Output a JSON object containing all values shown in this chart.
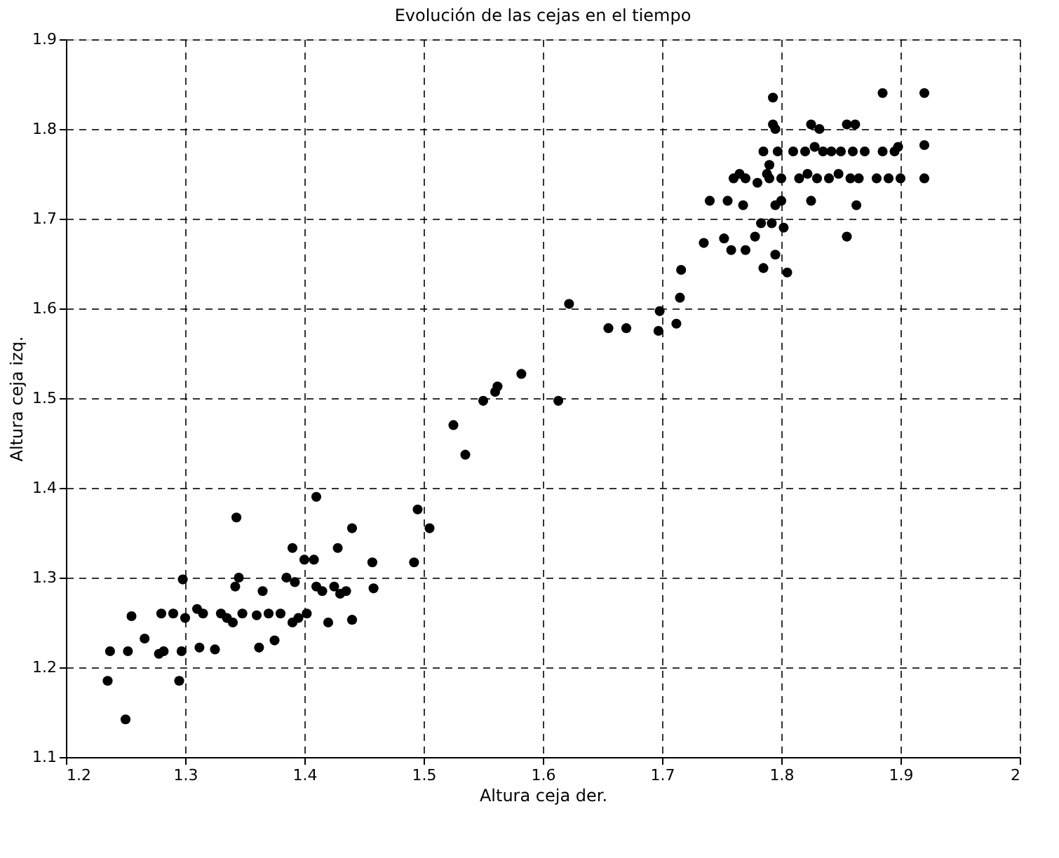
{
  "chart_data": {
    "type": "scatter",
    "title": "Evolución de las cejas en el tiempo",
    "xlabel": "Altura ceja der.",
    "ylabel": "Altura ceja izq.",
    "xlim": [
      1.2,
      2
    ],
    "xticks": [
      1.2,
      1.3,
      1.4,
      1.5,
      1.6,
      1.7,
      1.8,
      1.9,
      2
    ],
    "ylim": [
      1.1,
      1.9
    ],
    "yticks": [
      1.1,
      1.2,
      1.3,
      1.4,
      1.5,
      1.6,
      1.7,
      1.8,
      1.9
    ],
    "grid": true,
    "marker": "circle",
    "series": [
      {
        "color": "#000000",
        "x": [
          1.235,
          1.237,
          1.25,
          1.252,
          1.255,
          1.266,
          1.278,
          1.28,
          1.282,
          1.29,
          1.295,
          1.297,
          1.298,
          1.3,
          1.31,
          1.312,
          1.315,
          1.325,
          1.33,
          1.335,
          1.34,
          1.342,
          1.343,
          1.345,
          1.348,
          1.36,
          1.362,
          1.365,
          1.37,
          1.375,
          1.38,
          1.385,
          1.39,
          1.39,
          1.392,
          1.395,
          1.4,
          1.402,
          1.41,
          1.41,
          1.408,
          1.415,
          1.42,
          1.425,
          1.428,
          1.43,
          1.435,
          1.44,
          1.44,
          1.457,
          1.458,
          1.492,
          1.495,
          1.505,
          1.525,
          1.535,
          1.55,
          1.56,
          1.562,
          1.582,
          1.613,
          1.622,
          1.655,
          1.67,
          1.697,
          1.698,
          1.712,
          1.715,
          1.716,
          1.735,
          1.74,
          1.752,
          1.755,
          1.758,
          1.76,
          1.765,
          1.768,
          1.77,
          1.77,
          1.778,
          1.78,
          1.783,
          1.785,
          1.785,
          1.788,
          1.79,
          1.79,
          1.792,
          1.793,
          1.793,
          1.795,
          1.795,
          1.795,
          1.797,
          1.8,
          1.8,
          1.802,
          1.805,
          1.81,
          1.815,
          1.82,
          1.822,
          1.825,
          1.825,
          1.828,
          1.83,
          1.832,
          1.835,
          1.84,
          1.842,
          1.848,
          1.85,
          1.855,
          1.855,
          1.858,
          1.86,
          1.862,
          1.863,
          1.865,
          1.87,
          1.88,
          1.885,
          1.885,
          1.89,
          1.895,
          1.898,
          1.9,
          1.92,
          1.92,
          1.92
        ],
        "values": [
          1.185,
          1.218,
          1.142,
          1.218,
          1.257,
          1.232,
          1.215,
          1.26,
          1.218,
          1.26,
          1.185,
          1.218,
          1.298,
          1.255,
          1.265,
          1.222,
          1.26,
          1.22,
          1.26,
          1.255,
          1.25,
          1.29,
          1.367,
          1.3,
          1.26,
          1.258,
          1.222,
          1.285,
          1.26,
          1.23,
          1.26,
          1.3,
          1.25,
          1.333,
          1.295,
          1.255,
          1.32,
          1.26,
          1.29,
          1.39,
          1.32,
          1.285,
          1.25,
          1.29,
          1.333,
          1.282,
          1.285,
          1.253,
          1.355,
          1.317,
          1.288,
          1.317,
          1.376,
          1.355,
          1.47,
          1.437,
          1.497,
          1.507,
          1.513,
          1.527,
          1.497,
          1.605,
          1.578,
          1.578,
          1.575,
          1.597,
          1.583,
          1.612,
          1.643,
          1.673,
          1.72,
          1.678,
          1.72,
          1.665,
          1.745,
          1.75,
          1.715,
          1.745,
          1.665,
          1.68,
          1.74,
          1.695,
          1.775,
          1.645,
          1.75,
          1.745,
          1.76,
          1.695,
          1.835,
          1.805,
          1.8,
          1.715,
          1.66,
          1.775,
          1.72,
          1.745,
          1.69,
          1.64,
          1.775,
          1.745,
          1.775,
          1.75,
          1.805,
          1.72,
          1.78,
          1.745,
          1.8,
          1.775,
          1.745,
          1.775,
          1.75,
          1.775,
          1.68,
          1.805,
          1.745,
          1.775,
          1.805,
          1.715,
          1.745,
          1.775,
          1.745,
          1.775,
          1.84,
          1.745,
          1.775,
          1.78,
          1.745,
          1.84,
          1.782,
          1.745
        ]
      }
    ]
  }
}
